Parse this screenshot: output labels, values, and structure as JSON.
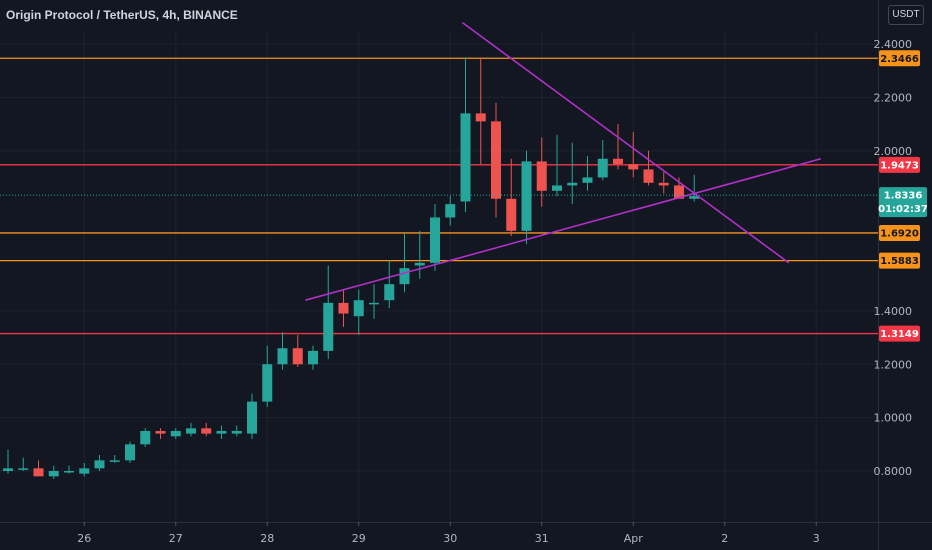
{
  "header": {
    "title": "Origin Protocol / TetherUS, 4h, BINANCE",
    "currency": "USDT"
  },
  "colors": {
    "background": "#131722",
    "up": "#26a69a",
    "down": "#ef5350",
    "orange": "#f7931a",
    "red": "#f23645",
    "trend": "#b030c8",
    "grid": "#1e222d"
  },
  "chart_data": {
    "type": "candlestick",
    "ylim": [
      0.7,
      2.5
    ],
    "yticks": [
      {
        "v": 2.4,
        "label": "2.4000"
      },
      {
        "v": 2.2,
        "label": "2.2000"
      },
      {
        "v": 2.0,
        "label": "2.0000"
      },
      {
        "v": 1.4,
        "label": "1.4000"
      },
      {
        "v": 1.2,
        "label": "1.2000"
      },
      {
        "v": 1.0,
        "label": "1.0000"
      },
      {
        "v": 0.8,
        "label": "0.8000"
      }
    ],
    "xticks": [
      {
        "i": 5,
        "label": "26"
      },
      {
        "i": 11,
        "label": "27"
      },
      {
        "i": 17,
        "label": "28"
      },
      {
        "i": 23,
        "label": "29"
      },
      {
        "i": 29,
        "label": "30"
      },
      {
        "i": 35,
        "label": "31"
      },
      {
        "i": 41,
        "label": "Apr"
      },
      {
        "i": 47,
        "label": "2"
      },
      {
        "i": 53,
        "label": "3"
      }
    ],
    "candles": [
      [
        0.8,
        0.88,
        0.79,
        0.81
      ],
      [
        0.81,
        0.85,
        0.8,
        0.81
      ],
      [
        0.81,
        0.84,
        0.79,
        0.78
      ],
      [
        0.78,
        0.82,
        0.77,
        0.8
      ],
      [
        0.8,
        0.82,
        0.79,
        0.8
      ],
      [
        0.79,
        0.83,
        0.78,
        0.81
      ],
      [
        0.81,
        0.86,
        0.8,
        0.84
      ],
      [
        0.84,
        0.86,
        0.83,
        0.84
      ],
      [
        0.84,
        0.91,
        0.83,
        0.9
      ],
      [
        0.9,
        0.96,
        0.89,
        0.95
      ],
      [
        0.95,
        0.96,
        0.92,
        0.94
      ],
      [
        0.93,
        0.96,
        0.92,
        0.95
      ],
      [
        0.94,
        0.98,
        0.93,
        0.96
      ],
      [
        0.96,
        0.98,
        0.93,
        0.94
      ],
      [
        0.94,
        0.97,
        0.92,
        0.95
      ],
      [
        0.94,
        0.97,
        0.93,
        0.95
      ],
      [
        0.94,
        1.09,
        0.92,
        1.06
      ],
      [
        1.06,
        1.27,
        1.04,
        1.2
      ],
      [
        1.2,
        1.32,
        1.18,
        1.26
      ],
      [
        1.26,
        1.31,
        1.19,
        1.2
      ],
      [
        1.2,
        1.27,
        1.18,
        1.25
      ],
      [
        1.25,
        1.57,
        1.22,
        1.43
      ],
      [
        1.43,
        1.48,
        1.34,
        1.39
      ],
      [
        1.38,
        1.48,
        1.31,
        1.44
      ],
      [
        1.43,
        1.5,
        1.37,
        1.43
      ],
      [
        1.44,
        1.59,
        1.41,
        1.5
      ],
      [
        1.5,
        1.69,
        1.47,
        1.56
      ],
      [
        1.57,
        1.7,
        1.52,
        1.58
      ],
      [
        1.58,
        1.8,
        1.55,
        1.75
      ],
      [
        1.75,
        1.83,
        1.72,
        1.8
      ],
      [
        1.81,
        2.35,
        1.77,
        2.14
      ],
      [
        2.14,
        2.35,
        1.95,
        2.11
      ],
      [
        2.11,
        2.18,
        1.75,
        1.82
      ],
      [
        1.82,
        1.97,
        1.68,
        1.7
      ],
      [
        1.7,
        2.0,
        1.65,
        1.96
      ],
      [
        1.96,
        2.05,
        1.79,
        1.85
      ],
      [
        1.85,
        2.06,
        1.83,
        1.87
      ],
      [
        1.87,
        2.03,
        1.8,
        1.88
      ],
      [
        1.88,
        1.98,
        1.85,
        1.9
      ],
      [
        1.9,
        2.04,
        1.89,
        1.97
      ],
      [
        1.97,
        2.1,
        1.93,
        1.95
      ],
      [
        1.95,
        2.07,
        1.9,
        1.93
      ],
      [
        1.93,
        2.0,
        1.87,
        1.88
      ],
      [
        1.88,
        1.92,
        1.84,
        1.87
      ],
      [
        1.87,
        1.9,
        1.82,
        1.82
      ],
      [
        1.82,
        1.91,
        1.81,
        1.83
      ]
    ],
    "horizontal_levels": [
      {
        "value": 2.3466,
        "label": "2.3466",
        "color": "orange"
      },
      {
        "value": 1.9473,
        "label": "1.9473",
        "color": "red"
      },
      {
        "value": 1.692,
        "label": "1.6920",
        "color": "orange"
      },
      {
        "value": 1.5883,
        "label": "1.5883",
        "color": "orange"
      },
      {
        "value": 1.3149,
        "label": "1.3149",
        "color": "red"
      }
    ],
    "trendlines": [
      {
        "from": {
          "i": 29.8,
          "v": 2.48
        },
        "to": {
          "i": 51.2,
          "v": 1.58
        }
      },
      {
        "from": {
          "i": 19.5,
          "v": 1.44
        },
        "to": {
          "i": 53.3,
          "v": 1.97
        }
      }
    ],
    "last_price": {
      "value": 1.8336,
      "label": "1.8336",
      "countdown": "01:02:37"
    }
  }
}
